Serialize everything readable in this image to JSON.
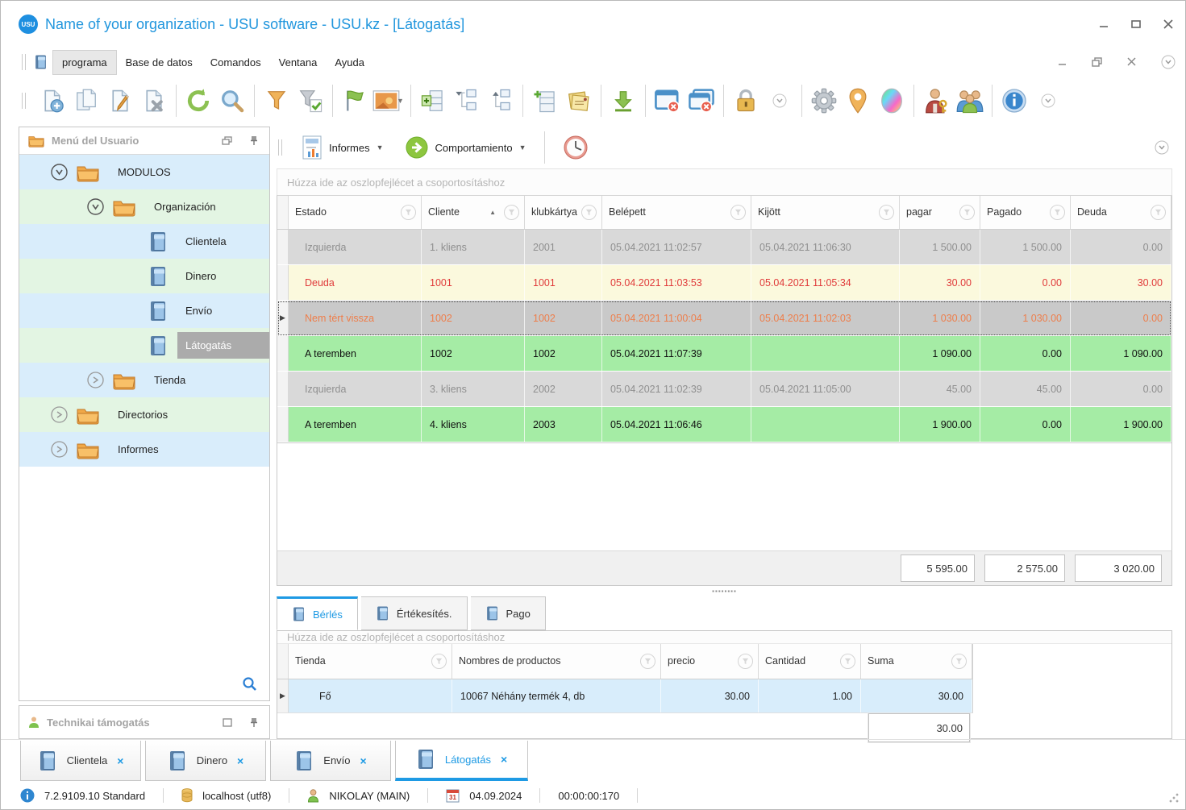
{
  "window": {
    "logo_text": "USU",
    "title": "Name of your organization - USU software - USU.kz - [Látogatás]"
  },
  "menu": {
    "items": [
      "programa",
      "Base de datos",
      "Comandos",
      "Ventana",
      "Ayuda"
    ],
    "active_item": "programa"
  },
  "toolbar": {
    "groups": [
      [
        "new-document-icon",
        "copy-document-icon",
        "edit-document-icon",
        "delete-document-icon"
      ],
      [
        "refresh-icon",
        "search-icon"
      ],
      [
        "filter-icon",
        "filter-check-icon"
      ],
      [
        "flag-icon",
        "image-icon"
      ],
      [
        "add-rows-icon",
        "tree-expand-icon",
        "tree-collapse-icon"
      ],
      [
        "add-row-icon",
        "notes-icon"
      ],
      [
        "download-icon"
      ],
      [
        "close-window-icon",
        "close-all-windows-icon"
      ],
      [
        "lock-icon",
        "more-chevron-icon"
      ],
      [
        "gear-icon",
        "location-pin-icon",
        "palette-icon"
      ],
      [
        "user-key-icon",
        "users-icon"
      ],
      [
        "info-icon",
        "more-chevron-icon"
      ]
    ]
  },
  "sidebar": {
    "title": "Menú del Usuario",
    "tree": [
      {
        "label": "MODULOS",
        "level": 0,
        "icon": "folder",
        "expander": "expanded",
        "bg": "blue",
        "selected": false
      },
      {
        "label": "Organización",
        "level": 1,
        "icon": "folder",
        "expander": "expanded",
        "bg": "green",
        "selected": false
      },
      {
        "label": "Clientela",
        "level": 2,
        "icon": "book",
        "expander": "none",
        "bg": "blue",
        "selected": false
      },
      {
        "label": "Dinero",
        "level": 2,
        "icon": "book",
        "expander": "none",
        "bg": "green",
        "selected": false
      },
      {
        "label": "Envío",
        "level": 2,
        "icon": "book",
        "expander": "none",
        "bg": "blue",
        "selected": false
      },
      {
        "label": "Látogatás",
        "level": 2,
        "icon": "book",
        "expander": "none",
        "bg": "green",
        "selected": true
      },
      {
        "label": "Tienda",
        "level": 1,
        "icon": "folder",
        "expander": "collapsed",
        "bg": "blue",
        "selected": false
      },
      {
        "label": "Directorios",
        "level": 0,
        "icon": "folder",
        "expander": "collapsed",
        "bg": "green",
        "selected": false
      },
      {
        "label": "Informes",
        "level": 0,
        "icon": "folder",
        "expander": "collapsed",
        "bg": "blue",
        "selected": false
      }
    ],
    "support_panel_title": "Technikai támogatás"
  },
  "report_toolbar": {
    "informes_label": "Informes",
    "comportamiento_label": "Comportamiento"
  },
  "main_grid": {
    "group_hint": "Húzza ide az oszlopfejlécet a csoportosításhoz",
    "columns": [
      "Estado",
      "Cliente",
      "klubkártya",
      "Belépett",
      "Kijött",
      "pagar",
      "Pagado",
      "Deuda"
    ],
    "sorted_column": "Cliente",
    "rows": [
      {
        "cells": [
          "Izquierda",
          "1. kliens",
          "2001",
          "05.04.2021 11:02:57",
          "05.04.2021 11:06:30",
          "1 500.00",
          "1 500.00",
          "0.00"
        ],
        "style": "gray",
        "indicator": false
      },
      {
        "cells": [
          "Deuda",
          "1001",
          "1001",
          "05.04.2021 11:03:53",
          "05.04.2021 11:05:34",
          "30.00",
          "0.00",
          "30.00"
        ],
        "style": "yellow",
        "indicator": false
      },
      {
        "cells": [
          "Nem tért vissza",
          "1002",
          "1002",
          "05.04.2021 11:00:04",
          "05.04.2021 11:02:03",
          "1 030.00",
          "1 030.00",
          "0.00"
        ],
        "style": "selected",
        "indicator": true
      },
      {
        "cells": [
          "A teremben",
          "1002",
          "1002",
          "05.04.2021 11:07:39",
          "",
          "1 090.00",
          "0.00",
          "1 090.00"
        ],
        "style": "green",
        "indicator": false
      },
      {
        "cells": [
          "Izquierda",
          "3. kliens",
          "2002",
          "05.04.2021 11:02:39",
          "05.04.2021 11:05:00",
          "45.00",
          "45.00",
          "0.00"
        ],
        "style": "gray",
        "indicator": false
      },
      {
        "cells": [
          "A teremben",
          "4. kliens",
          "2003",
          "05.04.2021 11:06:46",
          "",
          "1 900.00",
          "0.00",
          "1 900.00"
        ],
        "style": "green",
        "indicator": false
      }
    ],
    "totals": [
      "5 595.00",
      "2 575.00",
      "3 020.00"
    ]
  },
  "detail_tabs": [
    {
      "label": "Bérlés",
      "active": true
    },
    {
      "label": "Értékesítés.",
      "active": false
    },
    {
      "label": "Pago",
      "active": false
    }
  ],
  "detail_grid": {
    "group_hint": "Húzza ide az oszlopfejlécet a csoportosításhoz",
    "columns": [
      "Tienda",
      "Nombres de productos",
      "precio",
      "Cantidad",
      "Suma"
    ],
    "rows": [
      {
        "cells": [
          "Fő",
          "10067 Néhány termék 4, db",
          "30.00",
          "1.00",
          "30.00"
        ],
        "style": "bluerow",
        "indicator": true
      }
    ],
    "total": "30.00"
  },
  "window_tabs": [
    {
      "label": "Clientela",
      "active": false
    },
    {
      "label": "Dinero",
      "active": false
    },
    {
      "label": "Envío",
      "active": false
    },
    {
      "label": "Látogatás",
      "active": true
    }
  ],
  "status_bar": {
    "version": "7.2.9109.10 Standard",
    "database": "localhost (utf8)",
    "user": "NIKOLAY (MAIN)",
    "date": "04.09.2024",
    "timer": "00:00:00:170"
  },
  "colors": {
    "accent_blue": "#1e9ae4",
    "title_blue": "#2196dd",
    "row_gray": "#d9d9d9",
    "row_yellow": "#fbf9dd",
    "row_green": "#a5eca5",
    "row_selected": "#c9c9c9",
    "tree_blue": "#d9edfb",
    "tree_green": "#e3f5e3"
  }
}
